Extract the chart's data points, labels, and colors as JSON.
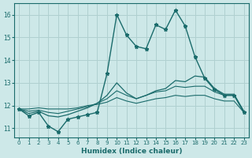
{
  "xlabel": "Humidex (Indice chaleur)",
  "xlim": [
    -0.5,
    23.5
  ],
  "ylim": [
    10.6,
    16.5
  ],
  "yticks": [
    11,
    12,
    13,
    14,
    15,
    16
  ],
  "xticks": [
    0,
    1,
    2,
    3,
    4,
    5,
    6,
    7,
    8,
    9,
    10,
    11,
    12,
    13,
    14,
    15,
    16,
    17,
    18,
    19,
    20,
    21,
    22,
    23
  ],
  "background_color": "#cde8e8",
  "grid_color": "#b0d0d0",
  "line_color": "#1a6b6b",
  "series": {
    "line_top": [
      11.85,
      11.55,
      11.7,
      11.1,
      10.85,
      11.4,
      11.5,
      11.6,
      11.7,
      13.4,
      16.0,
      15.1,
      14.6,
      14.5,
      15.55,
      15.35,
      16.2,
      15.5,
      14.15,
      13.2,
      12.7,
      12.45,
      12.45,
      11.7
    ],
    "line_upper": [
      11.85,
      11.65,
      11.75,
      11.55,
      11.5,
      11.6,
      11.75,
      11.9,
      12.1,
      12.45,
      13.0,
      12.55,
      12.3,
      12.45,
      12.65,
      12.75,
      13.1,
      13.05,
      13.3,
      13.25,
      12.75,
      12.5,
      12.5,
      11.75
    ],
    "line_mid": [
      11.85,
      11.75,
      11.8,
      11.7,
      11.65,
      11.75,
      11.85,
      11.95,
      12.1,
      12.3,
      12.65,
      12.45,
      12.3,
      12.45,
      12.6,
      12.65,
      12.85,
      12.8,
      12.85,
      12.85,
      12.6,
      12.45,
      12.45,
      11.75
    ],
    "line_low": [
      11.85,
      11.85,
      11.9,
      11.85,
      11.85,
      11.85,
      11.9,
      12.0,
      12.05,
      12.15,
      12.35,
      12.2,
      12.1,
      12.2,
      12.3,
      12.35,
      12.45,
      12.4,
      12.45,
      12.45,
      12.3,
      12.2,
      12.2,
      11.7
    ]
  }
}
